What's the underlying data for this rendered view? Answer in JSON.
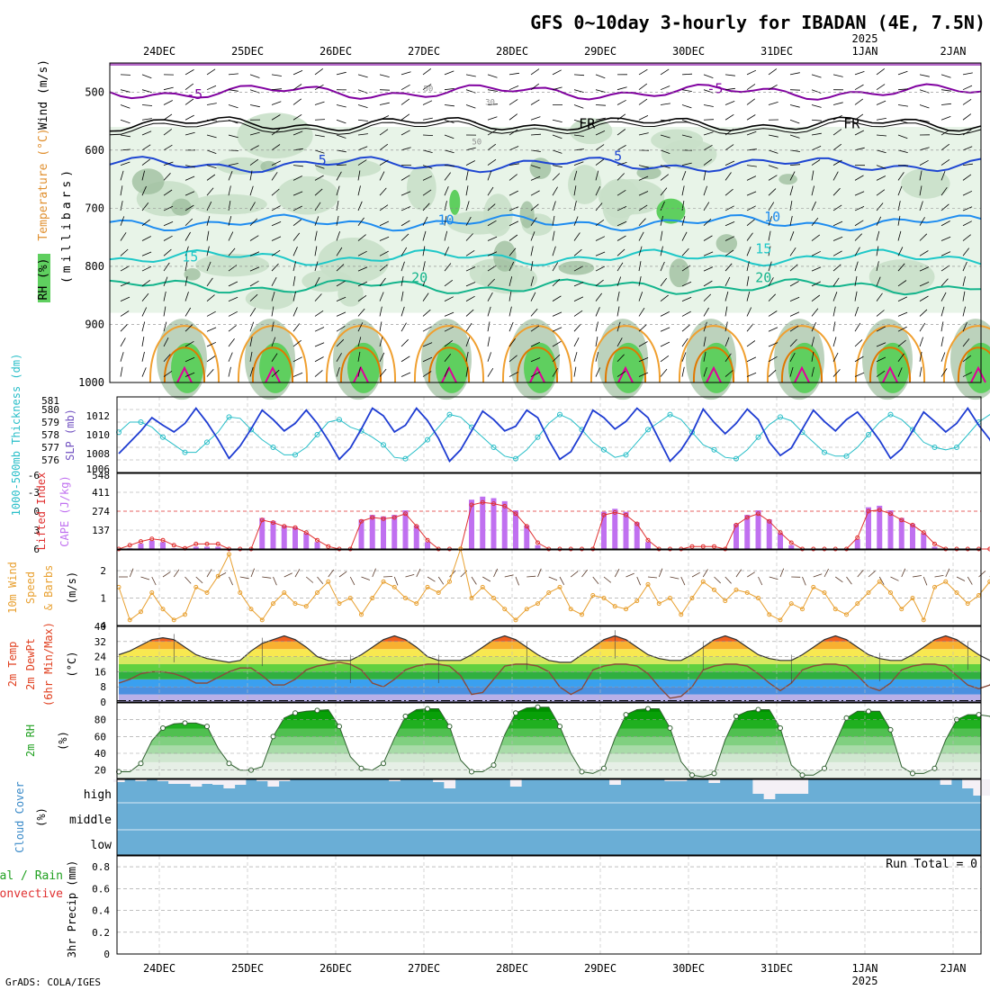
{
  "title": "GFS 0~10day 3-hourly for IBADAN (4E, 7.5N)",
  "credit": "GrADS: COLA/IGES",
  "colors": {
    "rh_light": "#e8f4e8",
    "rh_mid": "#c9e0c9",
    "rh_dark": "#9fbf9f",
    "rh_green": "#5fcf5f",
    "rh_bright": "#22dd22",
    "wind_purple": "#8000a0",
    "t_blue": "#1e46d2",
    "t_lightblue": "#1e8cf0",
    "t_cyan": "#1ec8c8",
    "t_teal": "#14b48c",
    "t_orange": "#f0a030",
    "t_darkorange": "#e07800",
    "t_magenta": "#e0009a",
    "slp": "#1e3cd2",
    "thickness": "#28bec8",
    "li": "#e03030",
    "cape": "#c070f0",
    "wind10": "#e8a030",
    "cloud": "#6aaed6",
    "rh2m": "#20a020"
  },
  "x_axis": {
    "dates": [
      "24DEC",
      "25DEC",
      "26DEC",
      "27DEC",
      "28DEC",
      "29DEC",
      "30DEC",
      "31DEC",
      "1JAN",
      "2JAN"
    ],
    "year_label": "2025",
    "year_under": "1JAN"
  },
  "chart_data": [
    {
      "type": "heatmap",
      "panel": "upper_air",
      "ylabel_parts": [
        "RH (%)",
        "Temperature (°C)",
        "Wind (m/s)"
      ],
      "ylabel_units": "(millibars)",
      "ylim": [
        1000,
        450
      ],
      "y_ticks": [
        500,
        600,
        700,
        800,
        900,
        1000
      ],
      "contour_labels": [
        {
          "text": "-5",
          "day": 0.4,
          "p": 512
        },
        {
          "text": "-5",
          "day": 6.3,
          "p": 502
        },
        {
          "text": "FR",
          "day": 4.85,
          "p": 562
        },
        {
          "text": "FR",
          "day": 7.85,
          "p": 562
        },
        {
          "text": "5",
          "day": 1.85,
          "p": 625
        },
        {
          "text": "5",
          "day": 5.2,
          "p": 618
        },
        {
          "text": "10",
          "day": 3.25,
          "p": 728
        },
        {
          "text": "10",
          "day": 6.95,
          "p": 723
        },
        {
          "text": "15",
          "day": 0.35,
          "p": 792
        },
        {
          "text": "15",
          "day": 6.85,
          "p": 778
        },
        {
          "text": "20",
          "day": 2.95,
          "p": 827
        },
        {
          "text": "20",
          "day": 6.85,
          "p": 827
        },
        {
          "text": "30",
          "day": 3.75,
          "p": 522
        },
        {
          "text": "50",
          "day": 3.05,
          "p": 499
        },
        {
          "text": "50",
          "day": 3.6,
          "p": 590
        }
      ],
      "isotherms": [
        {
          "label": "-5",
          "p": 500,
          "color": "#8000a0"
        },
        {
          "label": "FR",
          "p": 555,
          "color": "#000000"
        },
        {
          "label": "5",
          "p": 625,
          "color": "#1e46d2"
        },
        {
          "label": "10",
          "p": 725,
          "color": "#1e8cf0"
        },
        {
          "label": "15",
          "p": 785,
          "color": "#1ec8c8"
        },
        {
          "label": "20",
          "p": 835,
          "color": "#14b48c"
        }
      ]
    },
    {
      "type": "line",
      "panel": "slp_thickness",
      "ylabel_left": "1000-500mb Thickness (dm)",
      "ylabel_right": "SLP (mb)",
      "thickness_ticks": [
        576,
        577,
        578,
        579,
        580
      ],
      "slp_ticks": [
        1008,
        1010,
        1012
      ],
      "slp_axis_min_label": "1006",
      "slp_axis_max_label": "1014",
      "thickness_axis_min_label": "575",
      "thickness_axis_max_label": "581",
      "series": [
        {
          "name": "SLP",
          "axis": "slp",
          "values": [
            1008.0,
            1009.2,
            1010.4,
            1011.8,
            1011.0,
            1010.3,
            1011.2,
            1012.8,
            1011.3,
            1009.5,
            1007.5,
            1008.8,
            1010.6,
            1012.6,
            1011.6,
            1010.4,
            1011.2,
            1012.6,
            1011.2,
            1009.4,
            1007.4,
            1008.6,
            1010.6,
            1012.8,
            1012.0,
            1010.3,
            1011.0,
            1012.8,
            1011.5,
            1009.6,
            1007.2,
            1008.4,
            1010.4,
            1012.5,
            1011.6,
            1010.4,
            1010.9,
            1012.6,
            1011.8,
            1009.4,
            1007.4,
            1008.2,
            1010.2,
            1012.6,
            1011.8,
            1010.6,
            1011.4,
            1012.8,
            1011.8,
            1009.5,
            1007.2,
            1008.4,
            1010.2,
            1012.7,
            1011.3,
            1010.1,
            1011.2,
            1012.7,
            1011.6,
            1009.2,
            1007.8,
            1008.6,
            1010.6,
            1012.6,
            1011.4,
            1010.4,
            1011.6,
            1012.4,
            1011.0,
            1009.4,
            1007.5,
            1008.5,
            1010.4,
            1012.4,
            1011.4,
            1010.3,
            1011.2,
            1012.8,
            1011.0,
            1009.5,
            1007.0,
            1008.0,
            1010.2,
            1011.6
          ]
        },
        {
          "name": "1000-500mb Thickness",
          "axis": "thickness",
          "values": [
            578.2,
            579.0,
            579.0,
            578.6,
            577.8,
            577.2,
            576.6,
            576.6,
            577.4,
            578.2,
            579.4,
            579.3,
            578.4,
            577.6,
            577.0,
            576.4,
            576.4,
            577.0,
            578.0,
            579.0,
            579.2,
            578.6,
            578.3,
            577.8,
            577.2,
            576.2,
            576.1,
            576.8,
            577.6,
            578.6,
            579.6,
            579.4,
            578.6,
            577.8,
            577.0,
            576.3,
            576.1,
            576.8,
            577.8,
            578.9,
            579.6,
            579.2,
            578.4,
            577.4,
            576.8,
            576.2,
            576.4,
            577.4,
            578.4,
            579.0,
            579.6,
            579.2,
            578.2,
            577.2,
            576.8,
            576.2,
            576.1,
            576.8,
            577.8,
            578.8,
            579.4,
            579.1,
            578.2,
            577.4,
            576.6,
            576.3,
            576.3,
            577.0,
            578.0,
            579.0,
            579.6,
            579.2,
            578.4,
            577.4,
            577.0,
            576.8,
            577.0,
            578.0,
            579.0,
            579.6,
            579.5,
            578.6,
            577.6,
            577.0
          ]
        }
      ]
    },
    {
      "type": "bar",
      "panel": "cape_li",
      "ylabel_left": "Lifted Index",
      "ylabel_right": "CAPE (J/kg)",
      "li_ticks": [
        -3,
        0,
        3,
        6
      ],
      "li_top_label": "-6",
      "cape_ticks": [
        137,
        274,
        411
      ],
      "cape_top_label": "548",
      "series": [
        {
          "name": "CAPE",
          "values": [
            0,
            0,
            0,
            0,
            0,
            0,
            0,
            0,
            0,
            0,
            0,
            0,
            0,
            0,
            0,
            0,
            0,
            0,
            0,
            0,
            0,
            0,
            0,
            0,
            0,
            0,
            0,
            0,
            0,
            0,
            0,
            0,
            0,
            0,
            0,
            0,
            0,
            0,
            0,
            0,
            0,
            0,
            0,
            0,
            0,
            0,
            0,
            0,
            0,
            0,
            0,
            0,
            0,
            0,
            0,
            0,
            0,
            0,
            0,
            0,
            0,
            0,
            0,
            0,
            0,
            0,
            0,
            0,
            0,
            0,
            0,
            0,
            0,
            0,
            0,
            0,
            0,
            0,
            0,
            0,
            0,
            0,
            0,
            0
          ]
        },
        {
          "name": "Lifted Index",
          "values": [
            6,
            5.4,
            4.8,
            4.4,
            4.6,
            5.4,
            5.9,
            5.2,
            5.2,
            5.2,
            6,
            6,
            6,
            1.4,
            1.8,
            2.4,
            2.6,
            3.4,
            4.6,
            5.6,
            6,
            6,
            1.6,
            1.0,
            1.2,
            1.0,
            0.4,
            2.4,
            4.6,
            6,
            6,
            6,
            -1.0,
            -1.4,
            -1.2,
            -0.8,
            0.4,
            2.4,
            5.0,
            6,
            6,
            6,
            6,
            6,
            0.6,
            0.2,
            0.6,
            2.0,
            4.6,
            6,
            6,
            6,
            5.6,
            5.6,
            5.6,
            6,
            2.2,
            1.0,
            0.4,
            1.6,
            3.4,
            5.0,
            6.0,
            6,
            6,
            6,
            6,
            4.2,
            0.0,
            -0.2,
            0.4,
            1.4,
            2.2,
            3.4,
            5.2,
            6,
            6,
            6,
            6,
            6
          ]
        }
      ]
    },
    {
      "type": "line",
      "panel": "wind10m",
      "ylabel_parts": [
        "10m Wind",
        "Speed",
        "& Barbs"
      ],
      "ylabel_units": "(m/s)",
      "y_ticks": [
        1,
        2
      ],
      "y_top_label": "4",
      "series": [
        {
          "name": "10m Wind Speed",
          "values": [
            1.4,
            0.2,
            0.5,
            1.2,
            0.6,
            0.2,
            0.4,
            1.4,
            1.2,
            1.8,
            2.6,
            1.2,
            0.6,
            0.2,
            0.8,
            1.2,
            0.8,
            0.7,
            1.2,
            1.6,
            0.8,
            1.0,
            0.4,
            1.0,
            1.6,
            1.4,
            1.0,
            0.8,
            1.4,
            1.2,
            1.6,
            2.8,
            1.0,
            1.4,
            1.0,
            0.6,
            0.2,
            0.6,
            0.8,
            1.2,
            1.4,
            0.6,
            0.4,
            1.1,
            1.0,
            0.7,
            0.6,
            0.9,
            1.5,
            0.8,
            1.0,
            0.4,
            1.0,
            1.6,
            1.3,
            0.9,
            1.3,
            1.2,
            1.0,
            0.4,
            0.2,
            0.8,
            0.6,
            1.4,
            1.2,
            0.6,
            0.4,
            0.8,
            1.2,
            1.6,
            1.2,
            0.6,
            1.0,
            0.2,
            1.4,
            1.6,
            1.2,
            0.8,
            1.1,
            1.6,
            1.2,
            1.0,
            0.8,
            0.4
          ]
        }
      ]
    },
    {
      "type": "area",
      "panel": "temp2m",
      "ylabel_parts": [
        "2m Temp",
        "2m DewPt",
        "(6hr Min/Max)"
      ],
      "ylabel_units": "(°C)",
      "y_ticks": [
        0,
        8,
        16,
        24,
        32,
        40
      ],
      "series": [
        {
          "name": "2m Temp",
          "values": [
            25,
            27,
            30,
            33,
            34,
            33,
            29,
            25,
            23,
            22,
            21,
            22,
            27,
            31,
            33,
            35,
            33,
            29,
            24,
            22,
            22,
            22,
            25,
            29,
            33,
            35,
            33,
            29,
            24,
            22,
            22,
            22,
            25,
            29,
            33,
            35,
            33,
            29,
            25,
            22,
            21,
            21,
            25,
            29,
            33,
            35,
            33,
            29,
            25,
            23,
            22,
            22,
            25,
            29,
            33,
            35,
            33,
            29,
            25,
            23,
            22,
            22,
            25,
            29,
            33,
            35,
            33,
            29,
            25,
            23,
            22,
            22,
            25,
            29,
            33,
            35,
            33,
            29,
            25,
            22,
            21,
            21,
            22,
            20
          ]
        },
        {
          "name": "2m DewPt",
          "values": [
            10,
            12,
            15,
            16,
            16,
            15,
            13,
            10,
            10,
            13,
            16,
            18,
            18,
            14,
            9,
            9,
            12,
            17,
            19,
            20,
            21,
            20,
            17,
            10,
            8,
            12,
            17,
            19,
            20,
            20,
            19,
            14,
            4,
            5,
            12,
            19,
            20,
            20,
            19,
            16,
            8,
            4,
            7,
            17,
            19,
            20,
            20,
            19,
            15,
            8,
            2,
            3,
            8,
            17,
            19,
            20,
            20,
            19,
            15,
            10,
            6,
            10,
            17,
            19,
            20,
            20,
            19,
            14,
            8,
            6,
            10,
            17,
            19,
            20,
            20,
            19,
            14,
            9,
            7,
            9,
            17,
            19,
            20,
            20
          ]
        }
      ]
    },
    {
      "type": "area",
      "panel": "rh2m",
      "ylabel": "2m RH",
      "ylabel_units": "(%)",
      "y_ticks": [
        20,
        40,
        60,
        80
      ],
      "series": [
        {
          "name": "2m RH",
          "values": [
            18,
            18,
            28,
            55,
            70,
            75,
            76,
            76,
            72,
            46,
            28,
            20,
            20,
            24,
            60,
            82,
            88,
            90,
            91,
            92,
            72,
            36,
            22,
            20,
            28,
            58,
            84,
            92,
            93,
            93,
            72,
            32,
            18,
            18,
            26,
            62,
            88,
            94,
            95,
            95,
            72,
            40,
            18,
            16,
            22,
            58,
            86,
            92,
            93,
            93,
            70,
            30,
            14,
            12,
            16,
            56,
            84,
            90,
            92,
            92,
            70,
            26,
            14,
            14,
            22,
            52,
            82,
            90,
            90,
            90,
            68,
            24,
            16,
            16,
            22,
            56,
            80,
            86,
            86,
            84,
            66,
            24,
            14,
            12
          ]
        }
      ]
    },
    {
      "type": "bar",
      "panel": "cloud",
      "ylabel": "Cloud Cover",
      "ylabel_units": "(%)",
      "levels": [
        "high",
        "middle",
        "low"
      ],
      "series": [
        {
          "name": "high cloud gap",
          "values": [
            0,
            0,
            0,
            0,
            0,
            0,
            0,
            0,
            0,
            0,
            0,
            4,
            4,
            4,
            0,
            2,
            4,
            0,
            0,
            0,
            0,
            0,
            0,
            0,
            0,
            0,
            0,
            0,
            0,
            0,
            2,
            0,
            0,
            0,
            0,
            0,
            0,
            0,
            0,
            0,
            0,
            0,
            0,
            0,
            0,
            0,
            0,
            0,
            0,
            0,
            0,
            0,
            0,
            0,
            0,
            0,
            0,
            0,
            0,
            0,
            0,
            0,
            0,
            0,
            0,
            0,
            0,
            0,
            0,
            0,
            0,
            0,
            0,
            0,
            0,
            0,
            0,
            0,
            0,
            0,
            0,
            0,
            0,
            0
          ]
        }
      ]
    },
    {
      "type": "line",
      "panel": "precip",
      "ylabel_left_parts": [
        "Total / Rain",
        "Convective"
      ],
      "ylabel": "3hr Precip (mm)",
      "y_ticks": [
        0,
        0.2,
        0.4,
        0.6,
        0.8
      ],
      "y_tick_labels": [
        "0",
        "0.2",
        "0.4",
        "0.6",
        "0.8"
      ],
      "run_total_label": "Run Total = 0",
      "series": []
    }
  ]
}
